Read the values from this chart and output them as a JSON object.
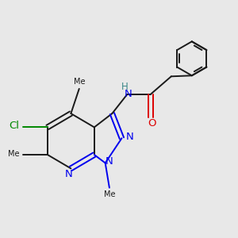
{
  "bg_color": "#e8e8e8",
  "bond_color": "#1a1a1a",
  "bond_width": 1.4,
  "n_color": "#0000ee",
  "o_color": "#dd0000",
  "cl_color": "#008800",
  "h_color": "#3a8888",
  "font_size": 8.5,
  "xlim": [
    -3.5,
    5.0
  ],
  "ylim": [
    -3.5,
    3.5
  ]
}
